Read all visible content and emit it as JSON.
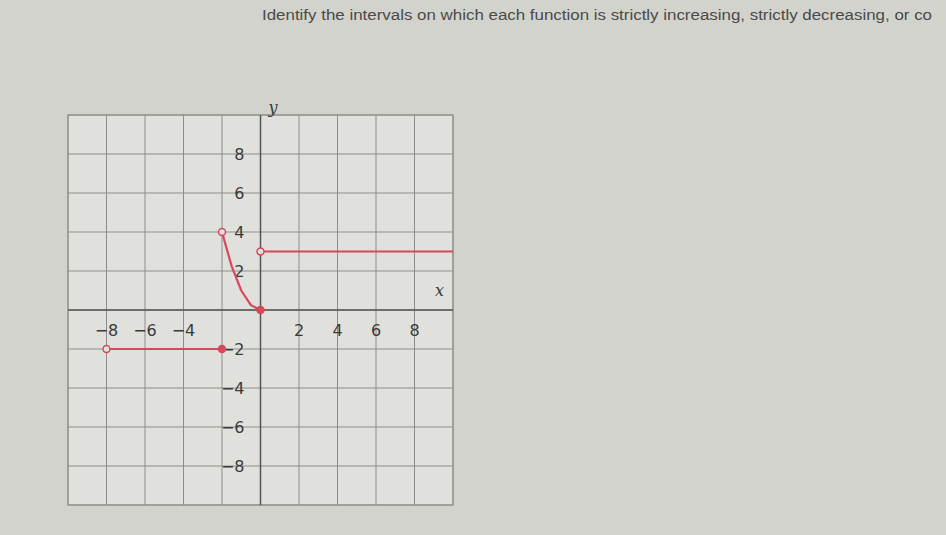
{
  "chart_data": {
    "type": "line",
    "title": "Identify the intervals on which each function is strictly increasing, strictly decreasing, or co",
    "xlabel": "x",
    "ylabel": "y",
    "xlim": [
      -10,
      10
    ],
    "ylim": [
      -10,
      10
    ],
    "xticks": [
      -8,
      -6,
      -4,
      2,
      4,
      6,
      8
    ],
    "yticks": [
      -8,
      -6,
      -4,
      -2,
      2,
      4,
      6,
      8
    ],
    "grid": true,
    "color": "#d8485c",
    "series": [
      {
        "x": [
          -8,
          -2
        ],
        "values": [
          -2,
          -2
        ]
      },
      {
        "x": [
          -2,
          -1.5,
          -1,
          -0.5,
          0
        ],
        "values": [
          4,
          2.25,
          1,
          0.25,
          0
        ]
      },
      {
        "x": [
          0,
          10
        ],
        "values": [
          3,
          3
        ]
      },
      {
        "type": "scatter",
        "marker": "open",
        "x": [
          -8,
          -2,
          0
        ],
        "values": [
          -2,
          4,
          3
        ]
      },
      {
        "type": "scatter",
        "marker": "closed",
        "x": [
          -2,
          0
        ],
        "values": [
          -2,
          0
        ]
      }
    ]
  }
}
